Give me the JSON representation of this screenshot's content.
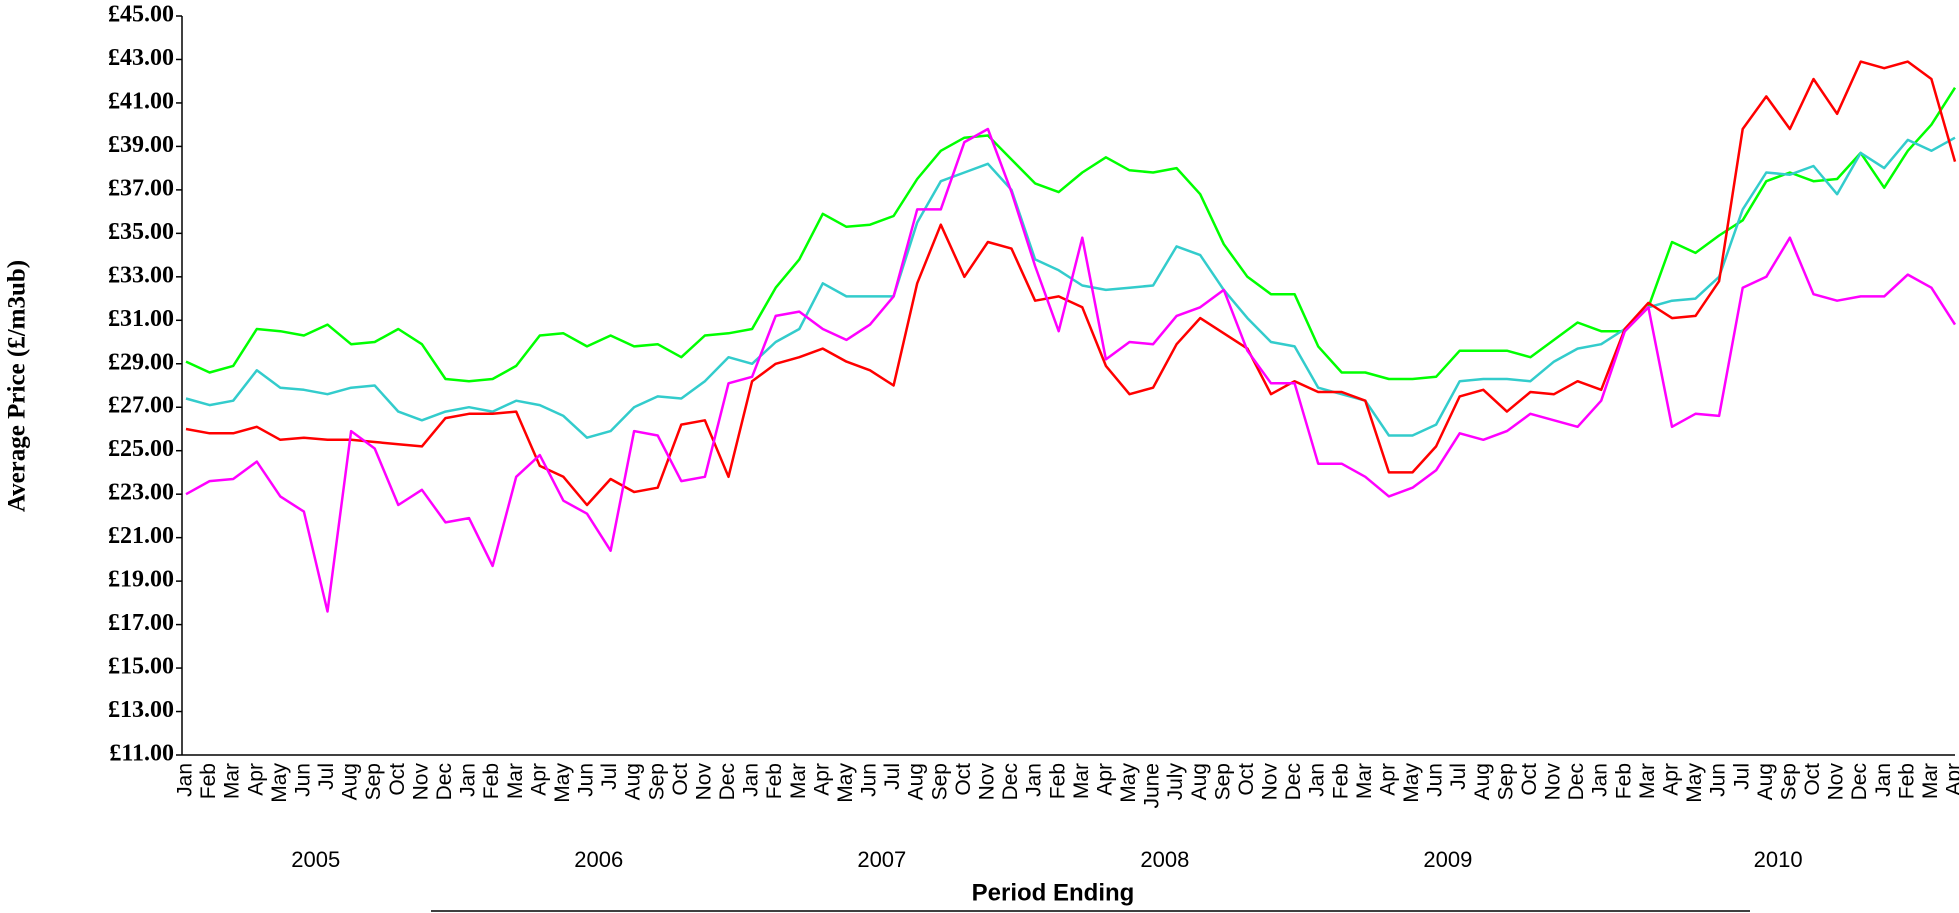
{
  "chart_data": {
    "type": "line",
    "y_label": "Average Price (£/m3ub)",
    "x_label": "Period Ending",
    "category_groups": [
      {
        "label": "2005",
        "categories": [
          "Jan",
          "Feb",
          "Mar",
          "Apr",
          "May",
          "Jun",
          "Jul",
          "Aug",
          "Sep",
          "Oct",
          "Nov",
          "Dec"
        ]
      },
      {
        "label": "2006",
        "categories": [
          "Jan",
          "Feb",
          "Mar",
          "Apr",
          "May",
          "Jun",
          "Jul",
          "Aug",
          "Sep",
          "Oct",
          "Nov",
          "Dec"
        ]
      },
      {
        "label": "2007",
        "categories": [
          "Jan",
          "Feb",
          "Mar",
          "Apr",
          "May",
          "Jun",
          "Jul",
          "Aug",
          "Sep",
          "Oct",
          "Nov",
          "Dec"
        ]
      },
      {
        "label": "2008",
        "categories": [
          "Jan",
          "Feb",
          "Mar",
          "Apr",
          "May",
          "June",
          "July",
          "Aug",
          "Sep",
          "Oct",
          "Nov",
          "Dec"
        ]
      },
      {
        "label": "2009",
        "categories": [
          "Jan",
          "Feb",
          "Mar",
          "Apr",
          "May",
          "Jun",
          "Jul",
          "Aug",
          "Sep",
          "Oct",
          "Nov",
          "Dec"
        ]
      },
      {
        "label": "2010",
        "categories": [
          "Jan",
          "Feb",
          "Mar",
          "Apr",
          "May",
          "Jun",
          "Jul",
          "Aug",
          "Sep",
          "Oct",
          "Nov",
          "Dec",
          "Jan",
          "Feb",
          "Mar",
          "Apr"
        ]
      }
    ],
    "series": [
      {
        "color": "#00ff00",
        "values": [
          29.1,
          28.6,
          28.9,
          30.6,
          30.5,
          30.3,
          30.8,
          29.9,
          30.0,
          30.6,
          29.9,
          28.3,
          28.2,
          28.3,
          28.9,
          30.3,
          30.4,
          29.8,
          30.3,
          29.8,
          29.9,
          29.3,
          30.3,
          30.4,
          30.6,
          32.5,
          33.8,
          35.9,
          35.3,
          35.4,
          35.8,
          37.5,
          38.8,
          39.4,
          39.5,
          38.4,
          37.3,
          36.9,
          37.8,
          38.5,
          37.9,
          37.8,
          38.0,
          36.8,
          34.5,
          33.0,
          32.2,
          32.2,
          29.8,
          28.6,
          28.6,
          28.3,
          28.3,
          28.4,
          29.6,
          29.6,
          29.6,
          29.3,
          30.1,
          30.9,
          30.5,
          30.5,
          31.6,
          34.6,
          34.1,
          34.9,
          35.6,
          37.4,
          37.8,
          37.4,
          37.5,
          38.7,
          37.1,
          38.8,
          40.0,
          41.7
        ]
      },
      {
        "color": "#33cccc",
        "values": [
          27.4,
          27.1,
          27.3,
          28.7,
          27.9,
          27.8,
          27.6,
          27.9,
          28.0,
          26.8,
          26.4,
          26.8,
          27.0,
          26.8,
          27.3,
          27.1,
          26.6,
          25.6,
          25.9,
          27.0,
          27.5,
          27.4,
          28.2,
          29.3,
          29.0,
          30.0,
          30.6,
          32.7,
          32.1,
          32.1,
          32.1,
          35.5,
          37.4,
          37.8,
          38.2,
          37.0,
          33.8,
          33.3,
          32.6,
          32.4,
          32.5,
          32.6,
          34.4,
          34.0,
          32.4,
          31.1,
          30.0,
          29.8,
          27.9,
          27.6,
          27.3,
          25.7,
          25.7,
          26.2,
          28.2,
          28.3,
          28.3,
          28.2,
          29.1,
          29.7,
          29.9,
          30.6,
          31.6,
          31.9,
          32.0,
          33.0,
          36.1,
          37.8,
          37.7,
          38.1,
          36.8,
          38.7,
          38.0,
          39.3,
          38.8,
          39.4
        ]
      },
      {
        "color": "#ff0000",
        "values": [
          26.0,
          25.8,
          25.8,
          26.1,
          25.5,
          25.6,
          25.5,
          25.5,
          25.4,
          25.3,
          25.2,
          26.5,
          26.7,
          26.7,
          26.8,
          24.3,
          23.8,
          22.5,
          23.7,
          23.1,
          23.3,
          26.2,
          26.4,
          23.8,
          28.2,
          29.0,
          29.3,
          29.7,
          29.1,
          28.7,
          28.0,
          32.7,
          35.4,
          33.0,
          34.6,
          34.3,
          31.9,
          32.1,
          31.6,
          28.9,
          27.6,
          27.9,
          29.9,
          31.1,
          30.4,
          29.7,
          27.6,
          28.2,
          27.7,
          27.7,
          27.3,
          24.0,
          24.0,
          25.2,
          27.5,
          27.8,
          26.8,
          27.7,
          27.6,
          28.2,
          27.8,
          30.6,
          31.8,
          31.1,
          31.2,
          32.8,
          39.8,
          41.3,
          39.8,
          42.1,
          40.5,
          42.9,
          42.6,
          42.9,
          42.1,
          38.3
        ]
      },
      {
        "color": "#ff00ff",
        "values": [
          23.0,
          23.6,
          23.7,
          24.5,
          22.9,
          22.2,
          17.6,
          25.9,
          25.1,
          22.5,
          23.2,
          21.7,
          21.9,
          19.7,
          23.8,
          24.8,
          22.7,
          22.1,
          20.4,
          25.9,
          25.7,
          23.6,
          23.8,
          28.1,
          28.4,
          31.2,
          31.4,
          30.6,
          30.1,
          30.8,
          32.1,
          36.1,
          36.1,
          39.2,
          39.8,
          36.9,
          33.5,
          30.5,
          34.8,
          29.2,
          30.0,
          29.9,
          31.2,
          31.6,
          32.4,
          29.6,
          28.1,
          28.1,
          24.4,
          24.4,
          23.8,
          22.9,
          23.3,
          24.1,
          25.8,
          25.5,
          25.9,
          26.7,
          26.4,
          26.1,
          27.3,
          30.5,
          31.6,
          26.1,
          26.7,
          26.6,
          32.5,
          33.0,
          34.8,
          32.2,
          31.9,
          32.1,
          32.1,
          33.1,
          32.5,
          30.8
        ]
      }
    ],
    "ylim": [
      11,
      45
    ],
    "yticks": [
      {
        "value": 11,
        "label": "£11.00"
      },
      {
        "value": 13,
        "label": "£13.00"
      },
      {
        "value": 15,
        "label": "£15.00"
      },
      {
        "value": 17,
        "label": "£17.00"
      },
      {
        "value": 19,
        "label": "£19.00"
      },
      {
        "value": 21,
        "label": "£21.00"
      },
      {
        "value": 23,
        "label": "£23.00"
      },
      {
        "value": 25,
        "label": "£25.00"
      },
      {
        "value": 27,
        "label": "£27.00"
      },
      {
        "value": 29,
        "label": "£29.00"
      },
      {
        "value": 31,
        "label": "£31.00"
      },
      {
        "value": 33,
        "label": "£33.00"
      },
      {
        "value": 35,
        "label": "£35.00"
      },
      {
        "value": 37,
        "label": "£37.00"
      },
      {
        "value": 39,
        "label": "£39.00"
      },
      {
        "value": 41,
        "label": "£41.00"
      },
      {
        "value": 43,
        "label": "£43.00"
      },
      {
        "value": 45,
        "label": "£45.00"
      }
    ],
    "grid": false
  }
}
